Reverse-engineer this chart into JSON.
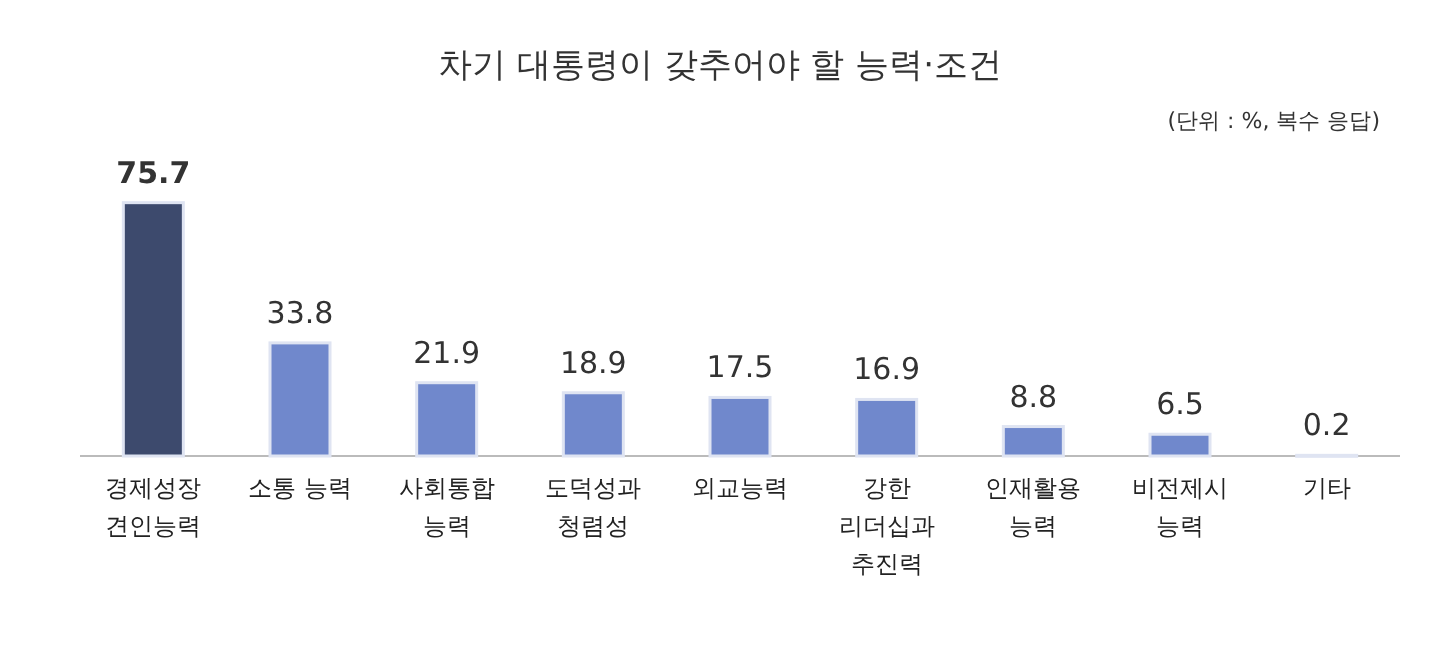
{
  "chart_data": {
    "type": "bar",
    "title": "차기 대통령이 갖추어야 할 능력·조건",
    "subtitle": "(단위 : %, 복수 응답)",
    "categories": [
      "경제성장 견인능력",
      "소통 능력",
      "사회통합 능력",
      "도덕성과 청렴성",
      "외교능력",
      "강한 리더십과 추진력",
      "인재활용 능력",
      "비전제시 능력",
      "기타"
    ],
    "values": [
      75.7,
      33.8,
      21.9,
      18.9,
      17.5,
      16.9,
      8.8,
      6.5,
      0.2
    ],
    "colors": [
      "#3d4a6d",
      "#7088cc",
      "#7088cc",
      "#7088cc",
      "#7088cc",
      "#7088cc",
      "#7088cc",
      "#7088cc",
      "#7088cc"
    ],
    "data_labels": true
  }
}
